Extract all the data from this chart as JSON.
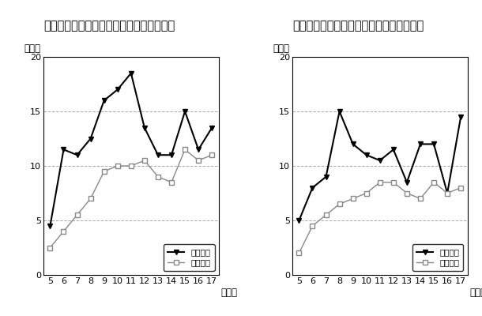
{
  "ages": [
    5,
    6,
    7,
    8,
    9,
    10,
    11,
    12,
    13,
    14,
    15,
    16,
    17
  ],
  "male_pref": [
    4.5,
    11.5,
    11.0,
    12.5,
    16.0,
    17.0,
    18.5,
    13.5,
    11.0,
    11.0,
    15.0,
    11.5,
    13.5
  ],
  "male_nation": [
    2.5,
    4.0,
    5.5,
    7.0,
    9.5,
    10.0,
    10.0,
    10.5,
    9.0,
    8.5,
    11.5,
    10.5,
    11.0
  ],
  "female_pref": [
    5.0,
    8.0,
    9.0,
    15.0,
    12.0,
    11.0,
    10.5,
    11.5,
    8.5,
    12.0,
    12.0,
    7.5,
    14.5
  ],
  "female_nation": [
    2.0,
    4.5,
    5.5,
    6.5,
    7.0,
    7.5,
    8.5,
    8.5,
    7.5,
    7.0,
    8.5,
    7.5,
    8.0
  ],
  "title1": "図１　肥満傾向児の出現率グラフ（男子）",
  "title2": "図２　肥満傾向児の出現率グラフ（女子）",
  "ylabel": "（％）",
  "xlabel": "（歳）",
  "legend_pref_male": "本県男子",
  "legend_nation_male": "全国男子",
  "legend_pref_female": "本県女子",
  "legend_nation_female": "全国女子",
  "yticks": [
    0,
    5,
    10,
    15,
    20
  ],
  "ylim": [
    0,
    20
  ],
  "hlines": [
    5,
    10,
    15
  ],
  "line_color_pref": "#000000",
  "line_color_nation": "#888888",
  "bg_color": "#ffffff",
  "plot_bg": "#ffffff",
  "title_fontsize": 10.5,
  "label_fontsize": 8.5,
  "tick_fontsize": 8,
  "legend_fontsize": 7.5
}
